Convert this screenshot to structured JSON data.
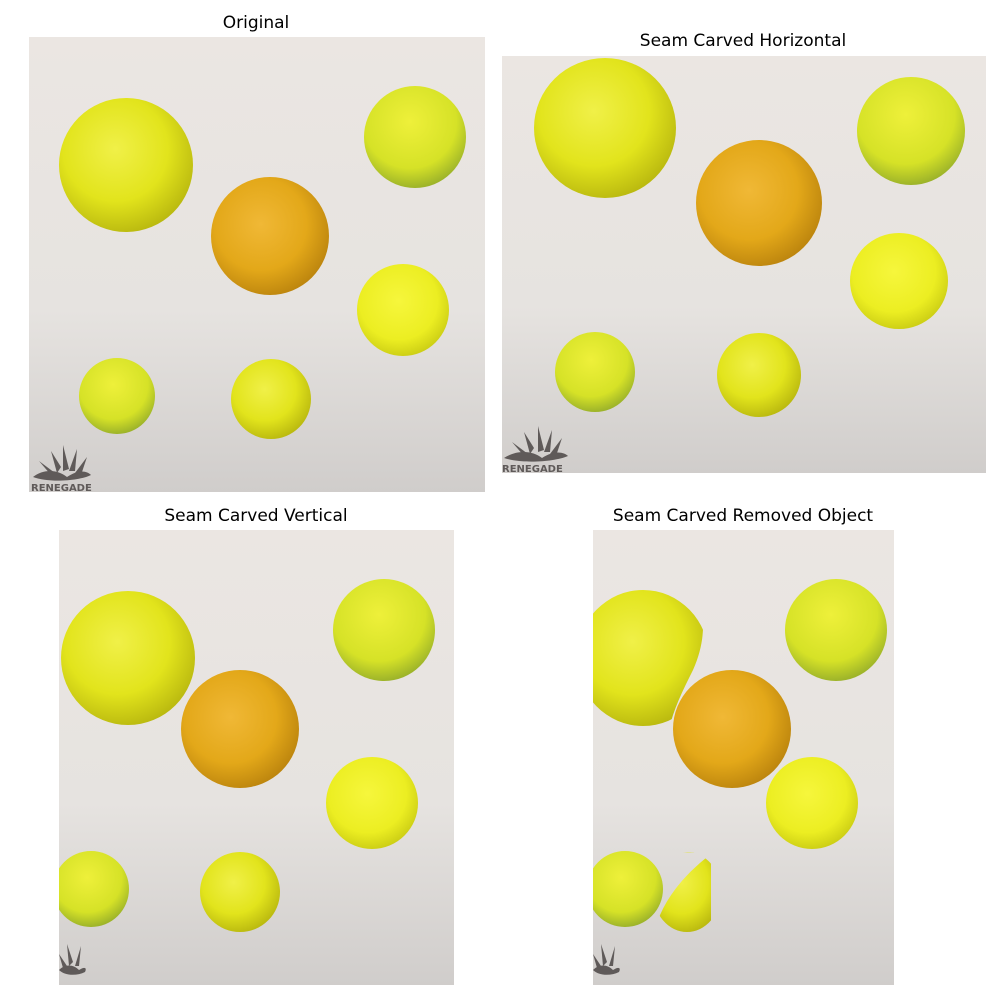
{
  "panels": {
    "original": {
      "title": "Original"
    },
    "horizontal": {
      "title": "Seam Carved Horizontal"
    },
    "vertical": {
      "title": "Seam Carved Vertical"
    },
    "removed": {
      "title": "Seam Carved Removed Object"
    }
  },
  "watermark": {
    "text": "RENEGADE"
  },
  "colors": {
    "background_top": "#ebe6e2",
    "background_bottom": "#d3d0ce",
    "ball_yellow": "#e3e51c",
    "ball_orange": "#e3a91a",
    "ball_lime": "#d4e226",
    "logo": "#5f5a59"
  }
}
